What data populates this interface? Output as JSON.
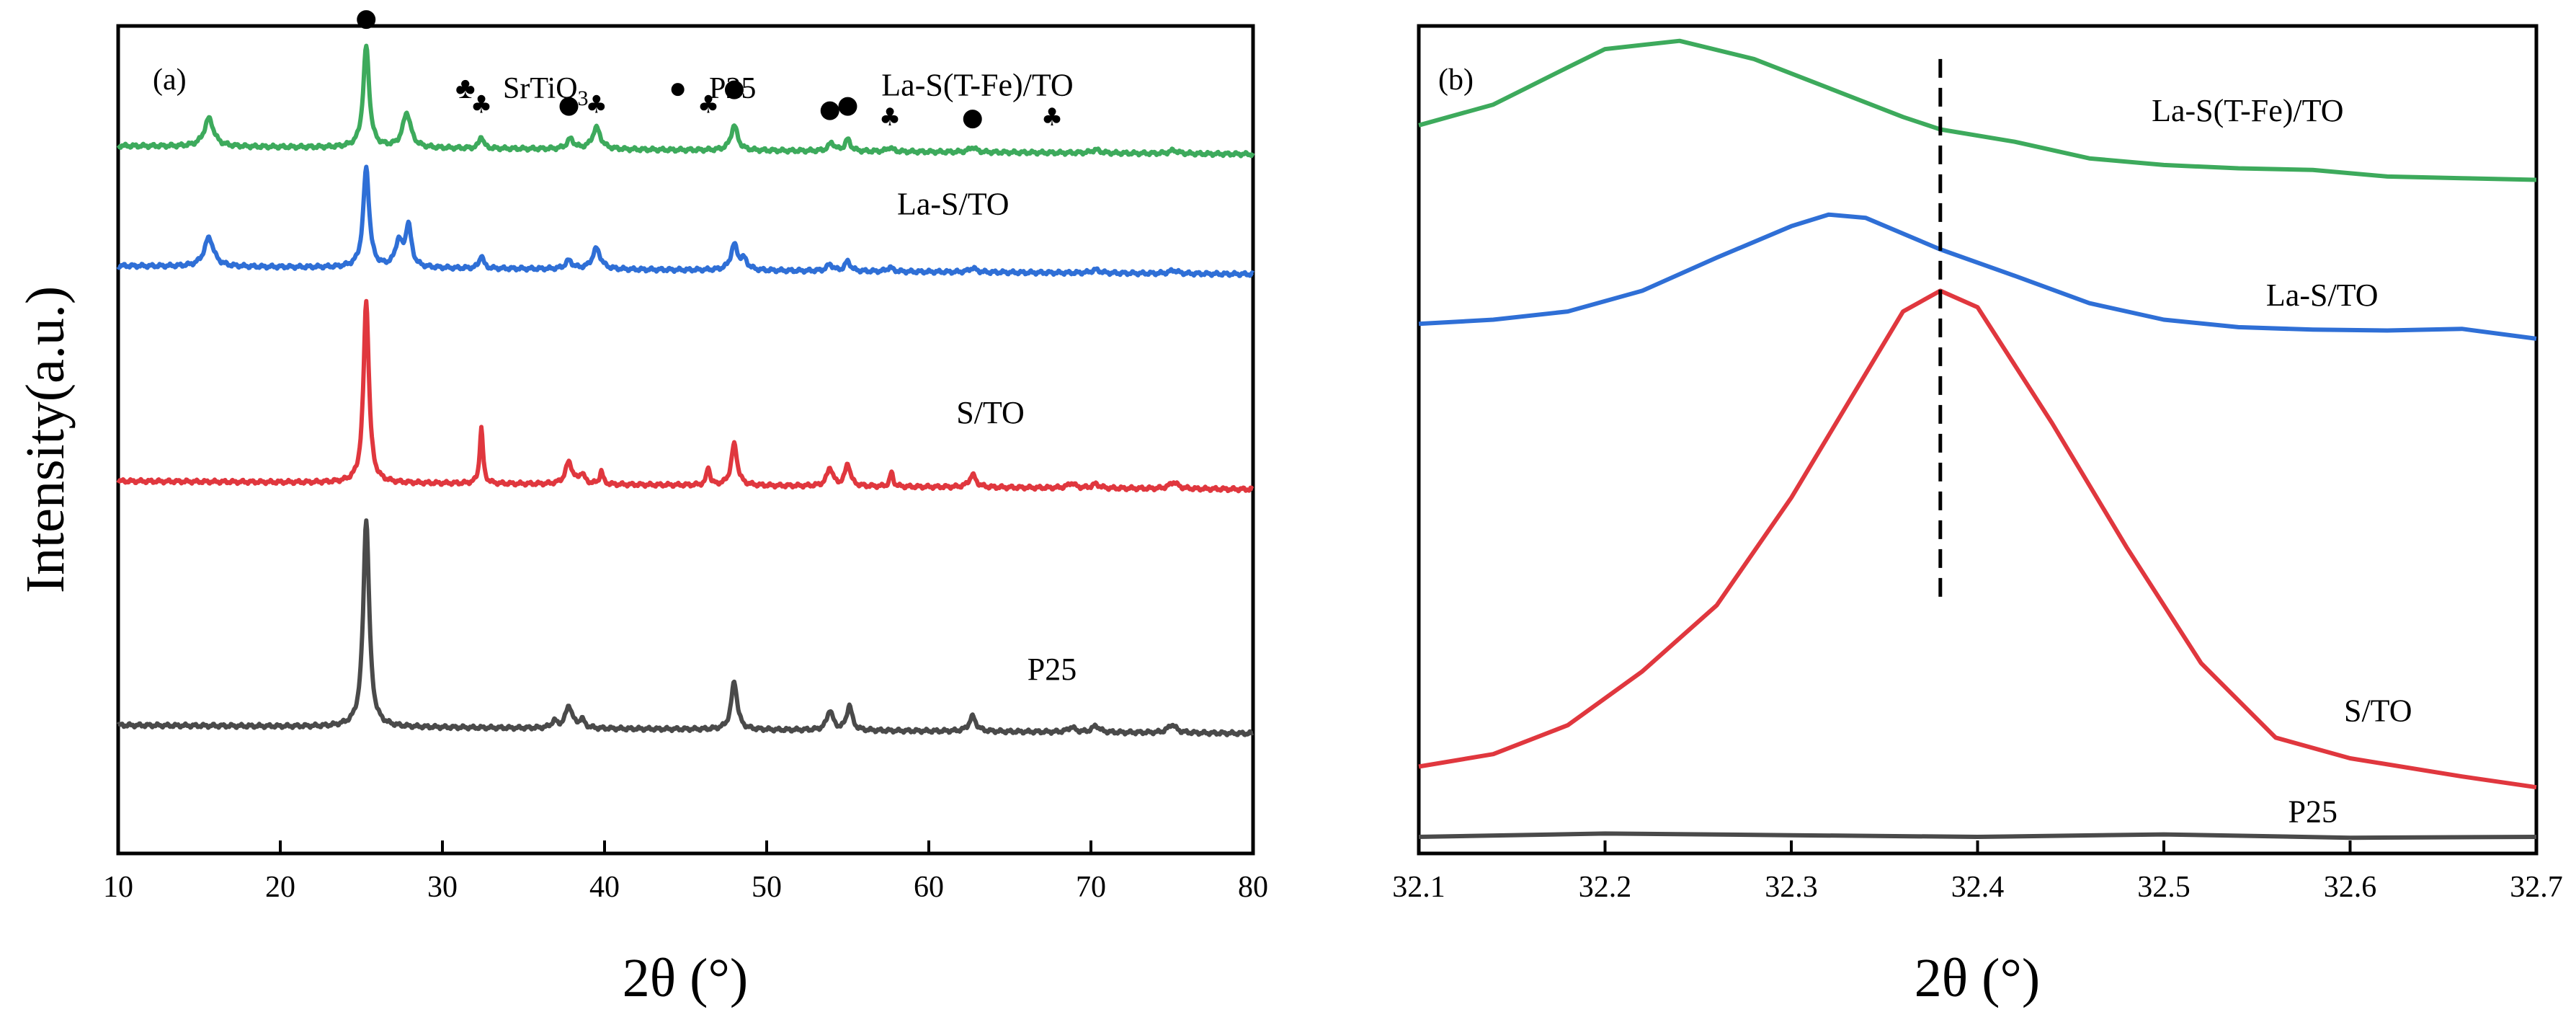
{
  "chart_data": [
    {
      "type": "line",
      "panel": "(a)",
      "xlabel": "2θ (°)",
      "ylabel": "Intensity(a.u.)",
      "xlim": [
        10,
        80
      ],
      "xticks": [
        10,
        20,
        30,
        40,
        50,
        60,
        70,
        80
      ],
      "ylim": [
        0,
        10
      ],
      "yticks_shown": false,
      "legend": {
        "entries": [
          {
            "symbol": "♣",
            "label": "SrTiO",
            "subscript": "3"
          },
          {
            "symbol": "●",
            "label": "P25",
            "subscript": ""
          }
        ]
      },
      "series": [
        {
          "name": "La-S(T-Fe)/TO",
          "color": "#3daa5c",
          "baseline": 8.55,
          "label_pos": [
            63.0,
            9.16
          ],
          "peaks": [
            [
              15.6,
              0.34,
              0.35
            ],
            [
              25.3,
              1.22,
              0.22
            ],
            [
              27.8,
              0.42,
              0.3
            ],
            [
              32.4,
              0.15,
              0.15
            ],
            [
              37.9,
              0.12,
              0.25
            ],
            [
              39.5,
              0.26,
              0.3
            ],
            [
              48.0,
              0.3,
              0.25
            ],
            [
              54.0,
              0.1,
              0.22
            ],
            [
              55.0,
              0.14,
              0.2
            ],
            [
              57.6,
              0.05,
              0.2
            ],
            [
              62.7,
              0.06,
              0.25
            ],
            [
              70.3,
              0.04,
              0.3
            ],
            [
              75.1,
              0.04,
              0.3
            ]
          ]
        },
        {
          "name": "La-S/TO",
          "color": "#2f6fd6",
          "baseline": 7.1,
          "label_pos": [
            61.5,
            7.72
          ],
          "peaks": [
            [
              15.6,
              0.35,
              0.35
            ],
            [
              25.3,
              1.2,
              0.22
            ],
            [
              27.3,
              0.3,
              0.25
            ],
            [
              27.9,
              0.5,
              0.22
            ],
            [
              32.4,
              0.16,
              0.15
            ],
            [
              37.8,
              0.1,
              0.25
            ],
            [
              39.5,
              0.25,
              0.3
            ],
            [
              48.0,
              0.3,
              0.25
            ],
            [
              48.6,
              0.12,
              0.25
            ],
            [
              53.9,
              0.08,
              0.22
            ],
            [
              55.0,
              0.12,
              0.2
            ],
            [
              57.6,
              0.05,
              0.2
            ],
            [
              62.7,
              0.05,
              0.25
            ],
            [
              70.3,
              0.04,
              0.3
            ],
            [
              75.1,
              0.04,
              0.3
            ]
          ]
        },
        {
          "name": "S/TO",
          "color": "#e0373e",
          "baseline": 4.5,
          "label_pos": [
            63.8,
            5.2
          ],
          "peaks": [
            [
              25.3,
              2.2,
              0.2
            ],
            [
              32.4,
              0.67,
              0.12
            ],
            [
              37.8,
              0.27,
              0.25
            ],
            [
              38.6,
              0.12,
              0.2
            ],
            [
              39.8,
              0.16,
              0.12
            ],
            [
              46.4,
              0.22,
              0.12
            ],
            [
              48.0,
              0.5,
              0.22
            ],
            [
              53.9,
              0.22,
              0.22
            ],
            [
              55.0,
              0.27,
              0.2
            ],
            [
              57.7,
              0.17,
              0.12
            ],
            [
              62.7,
              0.15,
              0.25
            ],
            [
              68.8,
              0.06,
              0.25
            ],
            [
              70.3,
              0.05,
              0.25
            ],
            [
              75.1,
              0.08,
              0.3
            ]
          ]
        },
        {
          "name": "P25",
          "color": "#4a4a4a",
          "baseline": 1.55,
          "label_pos": [
            67.6,
            2.1
          ],
          "peaks": [
            [
              25.3,
              2.52,
              0.22
            ],
            [
              36.9,
              0.08,
              0.2
            ],
            [
              37.8,
              0.27,
              0.25
            ],
            [
              38.6,
              0.1,
              0.2
            ],
            [
              48.0,
              0.58,
              0.22
            ],
            [
              53.9,
              0.24,
              0.22
            ],
            [
              55.1,
              0.3,
              0.2
            ],
            [
              62.7,
              0.18,
              0.25
            ],
            [
              68.8,
              0.06,
              0.25
            ],
            [
              70.3,
              0.08,
              0.25
            ],
            [
              75.0,
              0.1,
              0.3
            ]
          ]
        }
      ],
      "markers": [
        {
          "symbol": "●",
          "x": 25.3,
          "y": 10.0
        },
        {
          "symbol": "♣",
          "x": 32.4,
          "y": 8.95
        },
        {
          "symbol": "●",
          "x": 37.8,
          "y": 8.95
        },
        {
          "symbol": "♣",
          "x": 39.5,
          "y": 8.95
        },
        {
          "symbol": "♣",
          "x": 46.4,
          "y": 8.95
        },
        {
          "symbol": "●",
          "x": 48.0,
          "y": 9.15
        },
        {
          "symbol": "●",
          "x": 53.9,
          "y": 8.9
        },
        {
          "symbol": "●",
          "x": 55.0,
          "y": 8.95
        },
        {
          "symbol": "♣",
          "x": 57.6,
          "y": 8.8
        },
        {
          "symbol": "●",
          "x": 62.7,
          "y": 8.8
        },
        {
          "symbol": "♣",
          "x": 67.6,
          "y": 8.8
        }
      ]
    },
    {
      "type": "line",
      "panel": "(b)",
      "xlabel": "2θ (°)",
      "xlim": [
        32.1,
        32.7
      ],
      "xticks": [
        32.1,
        32.2,
        32.3,
        32.4,
        32.5,
        32.6,
        32.7
      ],
      "ylim": [
        0,
        10
      ],
      "yticks_shown": false,
      "reference_line": {
        "x": 32.38,
        "y_range": [
          3.1,
          9.6
        ],
        "style": "dashed"
      },
      "series": [
        {
          "name": "La-S(T-Fe)/TO",
          "color": "#3daa5c",
          "label_pos": [
            32.545,
            8.85
          ],
          "x": [
            32.1,
            32.14,
            32.18,
            32.2,
            32.24,
            32.28,
            32.32,
            32.36,
            32.38,
            32.42,
            32.46,
            32.5,
            32.54,
            32.58,
            32.62,
            32.66,
            32.7
          ],
          "y": [
            8.8,
            9.05,
            9.5,
            9.72,
            9.82,
            9.6,
            9.25,
            8.9,
            8.75,
            8.6,
            8.4,
            8.32,
            8.28,
            8.26,
            8.18,
            8.16,
            8.14
          ]
        },
        {
          "name": "La-S/TO",
          "color": "#2f6fd6",
          "label_pos": [
            32.585,
            6.62
          ],
          "x": [
            32.1,
            32.14,
            32.18,
            32.22,
            32.26,
            32.3,
            32.32,
            32.34,
            32.38,
            32.42,
            32.46,
            32.5,
            32.54,
            32.58,
            32.62,
            32.66,
            32.7
          ],
          "y": [
            6.4,
            6.45,
            6.55,
            6.8,
            7.2,
            7.58,
            7.72,
            7.68,
            7.3,
            6.98,
            6.65,
            6.45,
            6.36,
            6.33,
            6.32,
            6.34,
            6.22
          ]
        },
        {
          "name": "S/TO",
          "color": "#e0373e",
          "label_pos": [
            32.615,
            1.6
          ],
          "x": [
            32.1,
            32.14,
            32.18,
            32.22,
            32.26,
            32.3,
            32.34,
            32.36,
            32.38,
            32.4,
            32.44,
            32.48,
            32.52,
            32.56,
            32.6,
            32.66,
            32.7
          ],
          "y": [
            1.05,
            1.2,
            1.55,
            2.2,
            3.0,
            4.3,
            5.8,
            6.55,
            6.8,
            6.6,
            5.2,
            3.7,
            2.3,
            1.4,
            1.15,
            0.93,
            0.8
          ]
        },
        {
          "name": "P25",
          "color": "#4a4a4a",
          "label_pos": [
            32.58,
            0.38
          ],
          "x": [
            32.1,
            32.2,
            32.3,
            32.4,
            32.5,
            32.6,
            32.7
          ],
          "y": [
            0.2,
            0.24,
            0.22,
            0.2,
            0.23,
            0.19,
            0.2
          ]
        }
      ]
    }
  ]
}
